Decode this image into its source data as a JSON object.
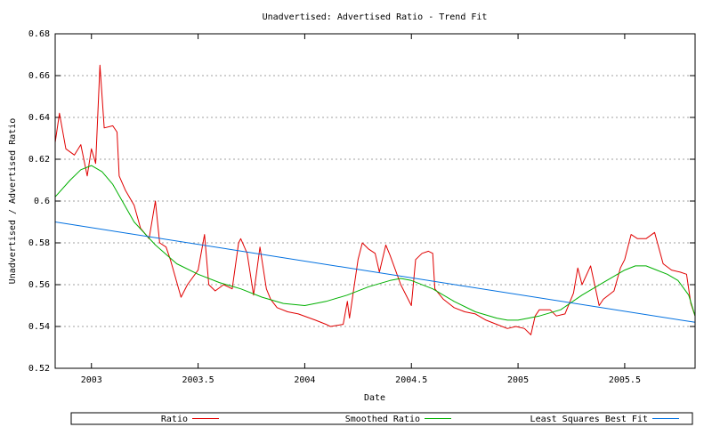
{
  "chart_data": {
    "type": "line",
    "title": "Unadvertised: Advertised Ratio - Trend Fit",
    "xlabel": "Date",
    "ylabel": "Unadvertised / Advertised Ratio",
    "xlim": [
      2002.83,
      2005.83
    ],
    "ylim": [
      0.52,
      0.68
    ],
    "x_ticks": [
      2003,
      2003.5,
      2004,
      2004.5,
      2005,
      2005.5
    ],
    "x_tick_labels": [
      "2003",
      "2003.5",
      "2004",
      "2004.5",
      "2005",
      "2005.5"
    ],
    "y_ticks": [
      0.52,
      0.54,
      0.56,
      0.58,
      0.6,
      0.62,
      0.64,
      0.66,
      0.68
    ],
    "y_tick_labels": [
      "0.52",
      "0.54",
      "0.56",
      "0.58",
      "0.6",
      "0.62",
      "0.64",
      "0.66",
      "0.68"
    ],
    "grid": "horizontal dashed",
    "legend_position": "bottom",
    "series": [
      {
        "name": "Ratio",
        "color": "#e00000",
        "x": [
          2002.83,
          2002.85,
          2002.88,
          2002.92,
          2002.95,
          2002.98,
          2003.0,
          2003.02,
          2003.04,
          2003.06,
          2003.1,
          2003.12,
          2003.13,
          2003.16,
          2003.2,
          2003.23,
          2003.27,
          2003.3,
          2003.32,
          2003.35,
          2003.37,
          2003.42,
          2003.45,
          2003.5,
          2003.53,
          2003.55,
          2003.58,
          2003.62,
          2003.66,
          2003.69,
          2003.7,
          2003.73,
          2003.76,
          2003.79,
          2003.82,
          2003.84,
          2003.87,
          2003.92,
          2003.97,
          2004.05,
          2004.1,
          2004.12,
          2004.18,
          2004.2,
          2004.21,
          2004.25,
          2004.27,
          2004.3,
          2004.33,
          2004.35,
          2004.38,
          2004.4,
          2004.45,
          2004.5,
          2004.52,
          2004.55,
          2004.58,
          2004.6,
          2004.61,
          2004.65,
          2004.7,
          2004.75,
          2004.8,
          2004.85,
          2004.9,
          2004.95,
          2004.99,
          2005.03,
          2005.06,
          2005.08,
          2005.1,
          2005.15,
          2005.18,
          2005.22,
          2005.26,
          2005.28,
          2005.3,
          2005.34,
          2005.38,
          2005.4,
          2005.45,
          2005.48,
          2005.5,
          2005.53,
          2005.56,
          2005.6,
          2005.64,
          2005.68,
          2005.72,
          2005.76,
          2005.79,
          2005.81,
          2005.83
        ],
        "y": [
          0.628,
          0.642,
          0.625,
          0.622,
          0.627,
          0.612,
          0.625,
          0.618,
          0.665,
          0.635,
          0.636,
          0.633,
          0.612,
          0.605,
          0.598,
          0.587,
          0.582,
          0.6,
          0.58,
          0.578,
          0.572,
          0.554,
          0.56,
          0.567,
          0.584,
          0.56,
          0.557,
          0.56,
          0.558,
          0.58,
          0.582,
          0.575,
          0.555,
          0.578,
          0.558,
          0.553,
          0.549,
          0.547,
          0.546,
          0.543,
          0.541,
          0.54,
          0.541,
          0.552,
          0.544,
          0.572,
          0.58,
          0.577,
          0.575,
          0.566,
          0.579,
          0.574,
          0.56,
          0.55,
          0.572,
          0.575,
          0.576,
          0.575,
          0.558,
          0.553,
          0.549,
          0.547,
          0.546,
          0.543,
          0.541,
          0.539,
          0.54,
          0.539,
          0.536,
          0.545,
          0.548,
          0.548,
          0.545,
          0.546,
          0.556,
          0.568,
          0.56,
          0.569,
          0.55,
          0.553,
          0.557,
          0.568,
          0.572,
          0.584,
          0.582,
          0.582,
          0.585,
          0.57,
          0.567,
          0.566,
          0.565,
          0.551,
          0.545
        ]
      },
      {
        "name": "Smoothed Ratio",
        "color": "#00b000",
        "x": [
          2002.83,
          2002.9,
          2002.95,
          2003.0,
          2003.05,
          2003.1,
          2003.15,
          2003.2,
          2003.3,
          2003.4,
          2003.5,
          2003.6,
          2003.7,
          2003.8,
          2003.9,
          2004.0,
          2004.1,
          2004.2,
          2004.3,
          2004.4,
          2004.45,
          2004.5,
          2004.6,
          2004.7,
          2004.8,
          2004.9,
          2004.95,
          2005.0,
          2005.1,
          2005.2,
          2005.3,
          2005.4,
          2005.5,
          2005.55,
          2005.6,
          2005.65,
          2005.7,
          2005.75,
          2005.8,
          2005.83
        ],
        "y": [
          0.602,
          0.61,
          0.615,
          0.617,
          0.614,
          0.608,
          0.599,
          0.59,
          0.579,
          0.57,
          0.565,
          0.561,
          0.558,
          0.554,
          0.551,
          0.55,
          0.552,
          0.555,
          0.559,
          0.562,
          0.563,
          0.562,
          0.558,
          0.552,
          0.547,
          0.544,
          0.543,
          0.543,
          0.545,
          0.548,
          0.555,
          0.561,
          0.567,
          0.569,
          0.569,
          0.567,
          0.565,
          0.562,
          0.555,
          0.545
        ]
      },
      {
        "name": "Least Squares Best Fit",
        "color": "#0070e0",
        "x": [
          2002.83,
          2005.83
        ],
        "y": [
          0.59,
          0.542
        ]
      }
    ]
  }
}
